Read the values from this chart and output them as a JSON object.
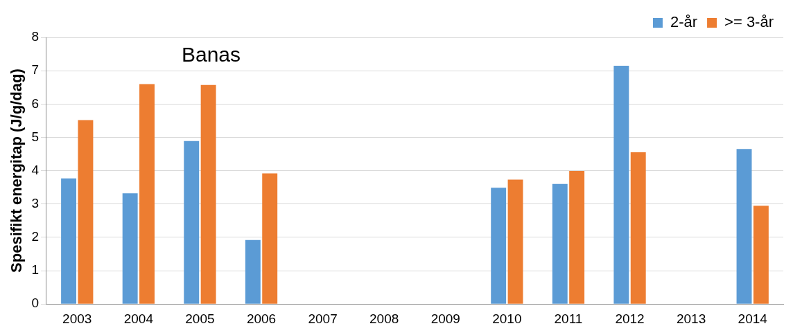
{
  "chart_data": {
    "type": "bar",
    "title": "Banas",
    "ylabel": "Spesifikt energitap (J/g/dag)",
    "categories": [
      "2003",
      "2004",
      "2005",
      "2006",
      "2007",
      "2008",
      "2009",
      "2010",
      "2011",
      "2012",
      "2013",
      "2014"
    ],
    "series": [
      {
        "name": "2-år",
        "color": "#5b9bd5",
        "values": [
          3.77,
          3.32,
          4.89,
          1.92,
          null,
          null,
          null,
          3.49,
          3.6,
          7.15,
          null,
          4.65
        ]
      },
      {
        "name": ">= 3-år",
        "color": "#ed7d31",
        "values": [
          5.52,
          6.6,
          6.57,
          3.92,
          null,
          null,
          null,
          3.73,
          3.99,
          4.55,
          null,
          2.95
        ]
      }
    ],
    "ylim": [
      0,
      8
    ],
    "yticks": [
      0,
      1,
      2,
      3,
      4,
      5,
      6,
      7,
      8
    ],
    "grid": "y",
    "legend": "top right"
  }
}
